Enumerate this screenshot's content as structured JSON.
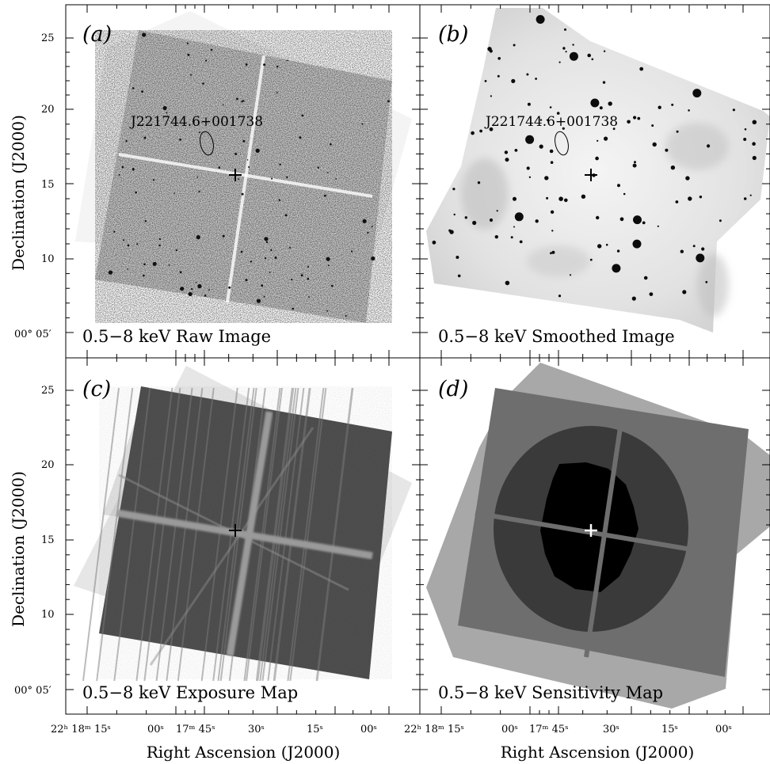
{
  "panels": [
    {
      "letter": "(a)",
      "caption": "0.5−8 keV Raw Image",
      "source_label": "J221744.6+001738"
    },
    {
      "letter": "(b)",
      "caption": "0.5−8 keV Smoothed Image",
      "source_label": "J221744.6+001738"
    },
    {
      "letter": "(c)",
      "caption": "0.5−8 keV Exposure Map"
    },
    {
      "letter": "(d)",
      "caption": "0.5−8 keV Sensitivity Map"
    }
  ],
  "axes": {
    "ylabel": "Declination (J2000)",
    "xlabel": "Right Ascension (J2000)",
    "y_ticks": [
      "25",
      "20",
      "15",
      "10",
      "00° 05′"
    ],
    "x_ticks_left": [
      "22ʰ 18ᵐ 15ˢ",
      "00ˢ",
      "17ᵐ 45ˢ",
      "30ˢ",
      "15ˢ",
      "00ˢ"
    ],
    "x_ticks_right": [
      "22ʰ 18ᵐ 15ˢ",
      "00ˢ",
      "17ᵐ 45ˢ",
      "30ˢ",
      "15ˢ",
      "00ˢ"
    ]
  },
  "colors": {
    "frame": "#000000",
    "background": "#ffffff",
    "exposure_dark": "#4a4a4a",
    "sensitivity_levels": [
      "#000000",
      "#3a3a3a",
      "#6e6e6e",
      "#a8a8a8"
    ]
  }
}
